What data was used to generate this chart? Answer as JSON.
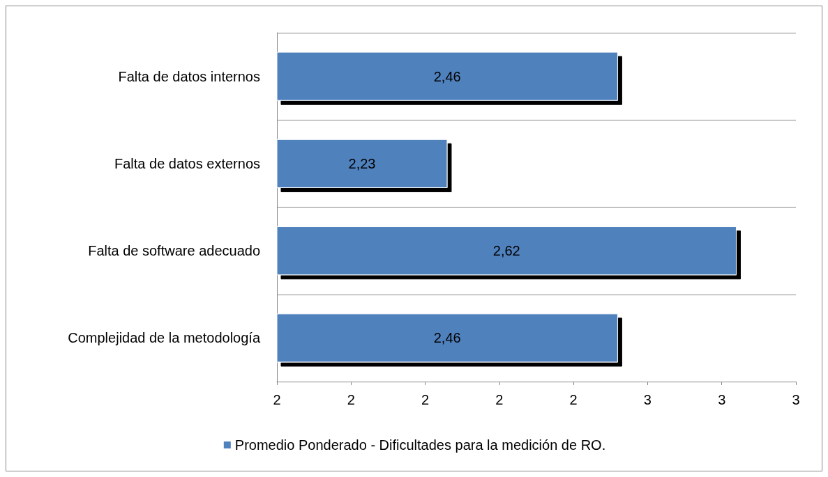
{
  "chart_data": {
    "type": "bar",
    "orientation": "horizontal",
    "categories": [
      "Falta de datos internos",
      "Falta de datos externos",
      "Falta de software adecuado",
      "Complejidad de la metodología"
    ],
    "series": [
      {
        "name": "Promedio Ponderado - Dificultades para la medición de RO.",
        "color": "#4f81bd",
        "values": [
          2.46,
          2.23,
          2.62,
          2.46
        ],
        "value_labels": [
          "2,46",
          "2,23",
          "2,62",
          "2,46"
        ]
      }
    ],
    "xlim": [
      2,
      2.7
    ],
    "xticks": [
      {
        "value": 2,
        "label": "2"
      },
      {
        "value": 2.1,
        "label": "2"
      },
      {
        "value": 2.2,
        "label": "2"
      },
      {
        "value": 2.3,
        "label": "2"
      },
      {
        "value": 2.4,
        "label": "2"
      },
      {
        "value": 2.5,
        "label": "3"
      },
      {
        "value": 2.6,
        "label": "3"
      },
      {
        "value": 2.7,
        "label": "3"
      }
    ],
    "grid": "y",
    "legend": "bottom"
  }
}
